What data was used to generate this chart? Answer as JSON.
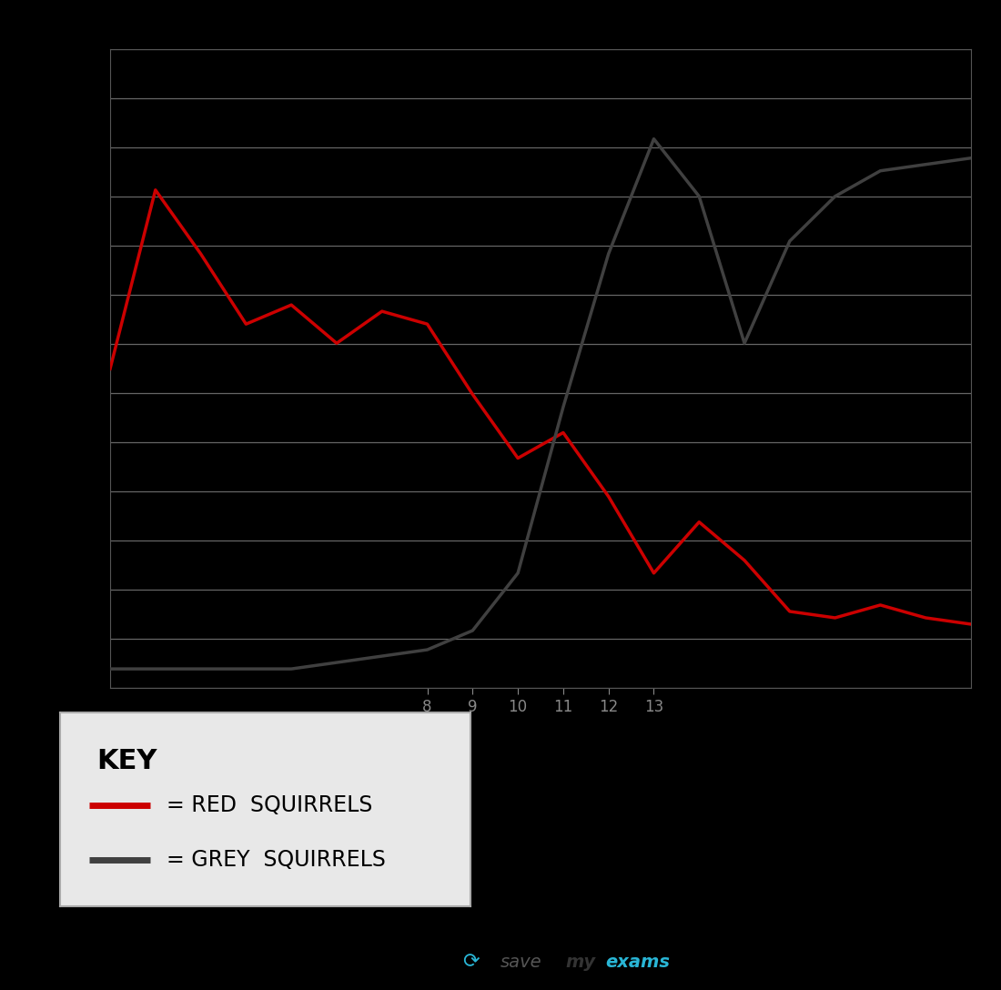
{
  "red_x": [
    1,
    2,
    3,
    4,
    5,
    6,
    7,
    8,
    9,
    10,
    11,
    12,
    13,
    14,
    15,
    16,
    17,
    18,
    19,
    20
  ],
  "red_y": [
    50,
    78,
    68,
    57,
    60,
    54,
    59,
    57,
    46,
    36,
    40,
    30,
    18,
    26,
    20,
    12,
    11,
    13,
    11,
    10
  ],
  "grey_x": [
    1,
    2,
    3,
    4,
    5,
    6,
    7,
    8,
    9,
    10,
    11,
    12,
    13,
    14,
    15,
    16,
    17,
    18,
    19,
    20
  ],
  "grey_y": [
    3,
    3,
    3,
    3,
    3,
    4,
    5,
    6,
    9,
    18,
    44,
    68,
    86,
    77,
    54,
    70,
    77,
    81,
    82,
    83
  ],
  "red_color": "#cc0000",
  "grey_color": "#404040",
  "fig_bg_color": "#000000",
  "plot_bg_color": "#000000",
  "grid_color": "#666666",
  "ylim": [
    0,
    100
  ],
  "xlim": [
    1,
    20
  ],
  "x_tick_positions": [
    8,
    9,
    10,
    11,
    12,
    13
  ],
  "x_tick_labels": [
    "8",
    "9",
    "10",
    "11",
    "12",
    "13"
  ],
  "key_title": "KEY",
  "key_red_label": "= RED  SQUIRRELS",
  "key_grey_label": "= GREY  SQUIRRELS",
  "key_bg_color": "#e8e8e8",
  "key_border_color": "#aaaaaa",
  "line_width": 2.5,
  "num_gridlines": 14,
  "sme_text_color_save": "#888888",
  "sme_text_color_my": "#333333",
  "sme_text_color_exams": "#29b6d6"
}
